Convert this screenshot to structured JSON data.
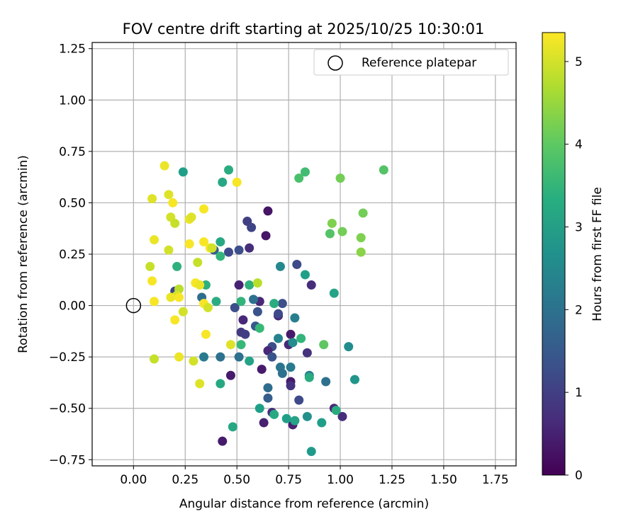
{
  "chart_data": {
    "type": "scatter",
    "title": "FOV centre drift starting at 2025/10/25 10:30:01",
    "xlabel": "Angular distance from reference (arcmin)",
    "ylabel": "Rotation from reference (arcmin)",
    "xlim": [
      -0.2,
      1.85
    ],
    "ylim": [
      -0.78,
      1.28
    ],
    "xticks": [
      "0.00",
      "0.25",
      "0.50",
      "0.75",
      "1.00",
      "1.25",
      "1.50",
      "1.75"
    ],
    "xtick_values": [
      0,
      0.25,
      0.5,
      0.75,
      1.0,
      1.25,
      1.5,
      1.75
    ],
    "yticks": [
      "−0.75",
      "−0.50",
      "−0.25",
      "0.00",
      "0.25",
      "0.50",
      "0.75",
      "1.00",
      "1.25"
    ],
    "ytick_values": [
      -0.75,
      -0.5,
      -0.25,
      0,
      0.25,
      0.5,
      0.75,
      1.0,
      1.25
    ],
    "grid": true,
    "legend": {
      "placement": "top-right",
      "label": "Reference platepar"
    },
    "reference_point": {
      "x": 0.0,
      "y": 0.0
    },
    "colorbar": {
      "label": "Hours from first FF file",
      "colormap": "viridis",
      "range": [
        0,
        5.35
      ],
      "ticks": [
        "0",
        "1",
        "2",
        "3",
        "4",
        "5"
      ],
      "tick_values": [
        0,
        1,
        2,
        3,
        4,
        5
      ]
    },
    "points": [
      {
        "x": 0.65,
        "y": 0.46,
        "h": 0.3
      },
      {
        "x": 0.64,
        "y": 0.34,
        "h": 0.3
      },
      {
        "x": 0.55,
        "y": 0.41,
        "h": 1.0
      },
      {
        "x": 0.57,
        "y": 0.38,
        "h": 1.1
      },
      {
        "x": 0.56,
        "y": 0.28,
        "h": 0.7
      },
      {
        "x": 0.51,
        "y": 0.27,
        "h": 1.3
      },
      {
        "x": 0.46,
        "y": 0.26,
        "h": 1.2
      },
      {
        "x": 0.79,
        "y": 0.2,
        "h": 1.2
      },
      {
        "x": 0.71,
        "y": 0.19,
        "h": 2.5
      },
      {
        "x": 0.51,
        "y": 0.1,
        "h": 0.5
      },
      {
        "x": 0.61,
        "y": 0.02,
        "h": 0.6
      },
      {
        "x": 0.58,
        "y": 0.03,
        "h": 2.0
      },
      {
        "x": 0.72,
        "y": 0.01,
        "h": 1.3
      },
      {
        "x": 0.6,
        "y": -0.03,
        "h": 1.4
      },
      {
        "x": 0.49,
        "y": -0.01,
        "h": 1.3
      },
      {
        "x": 0.53,
        "y": -0.07,
        "h": 0.6
      },
      {
        "x": 0.59,
        "y": -0.1,
        "h": 1.5
      },
      {
        "x": 0.52,
        "y": -0.13,
        "h": 0.9
      },
      {
        "x": 0.54,
        "y": -0.14,
        "h": 1.0
      },
      {
        "x": 0.7,
        "y": -0.05,
        "h": 0.6
      },
      {
        "x": 0.7,
        "y": -0.04,
        "h": 1.2
      },
      {
        "x": 0.76,
        "y": -0.14,
        "h": 0.4
      },
      {
        "x": 0.75,
        "y": -0.19,
        "h": 0.6
      },
      {
        "x": 0.67,
        "y": -0.2,
        "h": 1.3
      },
      {
        "x": 0.65,
        "y": -0.22,
        "h": 0.6
      },
      {
        "x": 0.67,
        "y": -0.25,
        "h": 1.4
      },
      {
        "x": 0.84,
        "y": -0.23,
        "h": 0.8
      },
      {
        "x": 0.62,
        "y": -0.31,
        "h": 0.4
      },
      {
        "x": 0.47,
        "y": -0.34,
        "h": 0.4
      },
      {
        "x": 0.65,
        "y": -0.4,
        "h": 1.9
      },
      {
        "x": 0.65,
        "y": -0.45,
        "h": 1.6
      },
      {
        "x": 0.76,
        "y": -0.37,
        "h": 0.4
      },
      {
        "x": 0.76,
        "y": -0.39,
        "h": 0.8
      },
      {
        "x": 0.8,
        "y": -0.46,
        "h": 1.2
      },
      {
        "x": 0.77,
        "y": -0.58,
        "h": 0.5
      },
      {
        "x": 0.63,
        "y": -0.57,
        "h": 0.5
      },
      {
        "x": 0.43,
        "y": -0.66,
        "h": 0.4
      },
      {
        "x": 0.67,
        "y": -0.52,
        "h": 0.7
      },
      {
        "x": 0.97,
        "y": -0.5,
        "h": 0.6
      },
      {
        "x": 1.01,
        "y": -0.54,
        "h": 0.7
      },
      {
        "x": 0.86,
        "y": 0.1,
        "h": 0.7
      },
      {
        "x": 0.93,
        "y": -0.37,
        "h": 2.0
      },
      {
        "x": 0.85,
        "y": -0.34,
        "h": 2.3
      },
      {
        "x": 0.76,
        "y": -0.3,
        "h": 2.2
      },
      {
        "x": 0.71,
        "y": -0.3,
        "h": 2.1
      },
      {
        "x": 0.72,
        "y": -0.33,
        "h": 2.0
      },
      {
        "x": 0.51,
        "y": -0.25,
        "h": 2.0
      },
      {
        "x": 0.42,
        "y": -0.25,
        "h": 2.0
      },
      {
        "x": 0.34,
        "y": -0.25,
        "h": 2.2
      },
      {
        "x": 0.33,
        "y": 0.04,
        "h": 1.9
      },
      {
        "x": 0.2,
        "y": 0.07,
        "h": 1.1
      },
      {
        "x": 0.39,
        "y": 0.27,
        "h": 1.6
      },
      {
        "x": 0.78,
        "y": -0.06,
        "h": 2.3
      },
      {
        "x": 0.77,
        "y": -0.18,
        "h": 2.6
      },
      {
        "x": 0.7,
        "y": -0.16,
        "h": 2.4
      },
      {
        "x": 1.04,
        "y": -0.2,
        "h": 2.6
      },
      {
        "x": 1.07,
        "y": -0.36,
        "h": 2.8
      },
      {
        "x": 0.61,
        "y": -0.11,
        "h": 3.6
      },
      {
        "x": 0.52,
        "y": 0.02,
        "h": 3.5
      },
      {
        "x": 0.68,
        "y": 0.01,
        "h": 3.3
      },
      {
        "x": 0.83,
        "y": 0.15,
        "h": 3.0
      },
      {
        "x": 0.97,
        "y": 0.06,
        "h": 3.1
      },
      {
        "x": 0.42,
        "y": 0.31,
        "h": 3.2
      },
      {
        "x": 0.42,
        "y": 0.24,
        "h": 3.5
      },
      {
        "x": 0.35,
        "y": 0.1,
        "h": 3.4
      },
      {
        "x": 0.4,
        "y": 0.02,
        "h": 3.3
      },
      {
        "x": 0.21,
        "y": 0.19,
        "h": 3.4
      },
      {
        "x": 0.24,
        "y": 0.65,
        "h": 3.0
      },
      {
        "x": 0.43,
        "y": 0.6,
        "h": 3.2
      },
      {
        "x": 0.46,
        "y": 0.66,
        "h": 3.3
      },
      {
        "x": 0.56,
        "y": 0.1,
        "h": 3.4
      },
      {
        "x": 0.52,
        "y": -0.19,
        "h": 3.6
      },
      {
        "x": 0.56,
        "y": -0.27,
        "h": 3.1
      },
      {
        "x": 0.42,
        "y": -0.38,
        "h": 3.2
      },
      {
        "x": 0.61,
        "y": -0.5,
        "h": 3.0
      },
      {
        "x": 0.68,
        "y": -0.53,
        "h": 3.2
      },
      {
        "x": 0.74,
        "y": -0.55,
        "h": 3.0
      },
      {
        "x": 0.78,
        "y": -0.56,
        "h": 3.1
      },
      {
        "x": 0.84,
        "y": -0.54,
        "h": 2.7
      },
      {
        "x": 0.91,
        "y": -0.57,
        "h": 3.0
      },
      {
        "x": 0.86,
        "y": -0.71,
        "h": 2.9
      },
      {
        "x": 0.48,
        "y": -0.59,
        "h": 3.2
      },
      {
        "x": 0.98,
        "y": -0.51,
        "h": 3.3
      },
      {
        "x": 0.81,
        "y": -0.16,
        "h": 3.5
      },
      {
        "x": 0.85,
        "y": -0.35,
        "h": 3.3
      },
      {
        "x": 0.92,
        "y": -0.19,
        "h": 4.0
      },
      {
        "x": 0.8,
        "y": 0.62,
        "h": 3.8
      },
      {
        "x": 0.83,
        "y": 0.65,
        "h": 3.7
      },
      {
        "x": 1.0,
        "y": 0.62,
        "h": 4.2
      },
      {
        "x": 1.21,
        "y": 0.66,
        "h": 3.9
      },
      {
        "x": 0.96,
        "y": 0.4,
        "h": 4.3
      },
      {
        "x": 0.95,
        "y": 0.35,
        "h": 3.9
      },
      {
        "x": 1.01,
        "y": 0.36,
        "h": 4.2
      },
      {
        "x": 1.1,
        "y": 0.33,
        "h": 4.3
      },
      {
        "x": 1.11,
        "y": 0.45,
        "h": 4.2
      },
      {
        "x": 1.1,
        "y": 0.26,
        "h": 4.4
      },
      {
        "x": 0.09,
        "y": 0.52,
        "h": 5.1
      },
      {
        "x": 0.15,
        "y": 0.68,
        "h": 5.2
      },
      {
        "x": 0.17,
        "y": 0.54,
        "h": 5.1
      },
      {
        "x": 0.19,
        "y": 0.5,
        "h": 5.3
      },
      {
        "x": 0.18,
        "y": 0.43,
        "h": 5.0
      },
      {
        "x": 0.2,
        "y": 0.4,
        "h": 4.9
      },
      {
        "x": 0.27,
        "y": 0.42,
        "h": 5.2
      },
      {
        "x": 0.28,
        "y": 0.43,
        "h": 5.1
      },
      {
        "x": 0.34,
        "y": 0.47,
        "h": 5.3
      },
      {
        "x": 0.5,
        "y": 0.6,
        "h": 5.3
      },
      {
        "x": 0.1,
        "y": 0.32,
        "h": 5.2
      },
      {
        "x": 0.17,
        "y": 0.27,
        "h": 5.0
      },
      {
        "x": 0.27,
        "y": 0.3,
        "h": 5.3
      },
      {
        "x": 0.34,
        "y": 0.31,
        "h": 5.3
      },
      {
        "x": 0.37,
        "y": 0.28,
        "h": 5.3
      },
      {
        "x": 0.38,
        "y": 0.28,
        "h": 5.0
      },
      {
        "x": 0.31,
        "y": 0.21,
        "h": 4.9
      },
      {
        "x": 0.08,
        "y": 0.19,
        "h": 4.9
      },
      {
        "x": 0.09,
        "y": 0.12,
        "h": 5.3
      },
      {
        "x": 0.3,
        "y": 0.11,
        "h": 5.3
      },
      {
        "x": 0.32,
        "y": 0.1,
        "h": 5.2
      },
      {
        "x": 0.6,
        "y": 0.11,
        "h": 4.8
      },
      {
        "x": 0.22,
        "y": 0.08,
        "h": 4.8
      },
      {
        "x": 0.21,
        "y": 0.05,
        "h": 5.0
      },
      {
        "x": 0.18,
        "y": 0.04,
        "h": 5.2
      },
      {
        "x": 0.22,
        "y": 0.04,
        "h": 5.3
      },
      {
        "x": 0.1,
        "y": 0.02,
        "h": 5.3
      },
      {
        "x": 0.34,
        "y": 0.01,
        "h": 5.3
      },
      {
        "x": 0.36,
        "y": -0.01,
        "h": 5.0
      },
      {
        "x": 0.24,
        "y": -0.03,
        "h": 5.0
      },
      {
        "x": 0.2,
        "y": -0.07,
        "h": 5.3
      },
      {
        "x": 0.35,
        "y": -0.14,
        "h": 5.3
      },
      {
        "x": 0.47,
        "y": -0.19,
        "h": 5.1
      },
      {
        "x": 0.22,
        "y": -0.25,
        "h": 5.2
      },
      {
        "x": 0.29,
        "y": -0.27,
        "h": 5.0
      },
      {
        "x": 0.1,
        "y": -0.26,
        "h": 4.9
      },
      {
        "x": 0.32,
        "y": -0.38,
        "h": 5.1
      }
    ]
  }
}
